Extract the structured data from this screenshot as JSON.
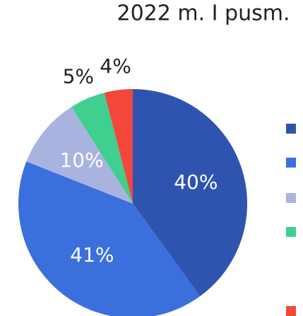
{
  "chart_data": {
    "type": "pie",
    "title": "2022 m. I pusm.",
    "values": [
      40,
      41,
      10,
      5,
      4
    ],
    "value_labels": [
      "40%",
      "41%",
      "10%",
      "5%",
      "4%"
    ],
    "colors": [
      "#2f54b0",
      "#3b6fdc",
      "#a9b3e0",
      "#3fcf8e",
      "#f2473a"
    ],
    "legend": "right"
  }
}
